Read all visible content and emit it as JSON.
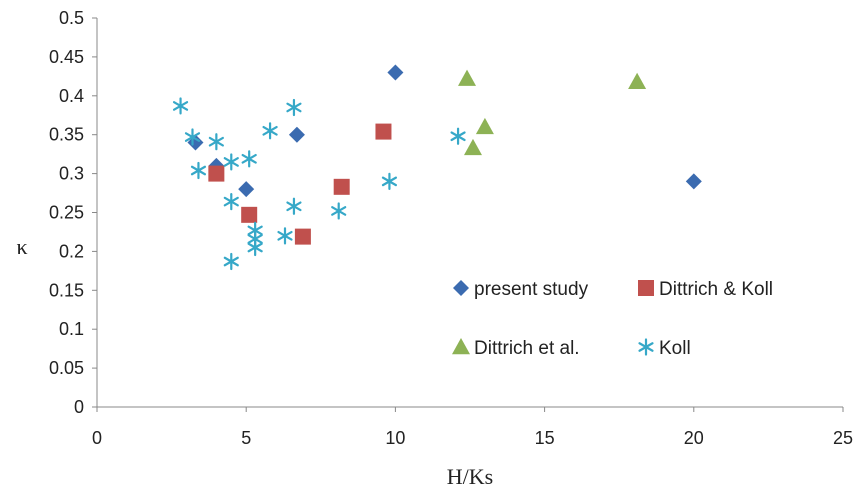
{
  "chart_data": {
    "type": "scatter",
    "xlabel": "H/Ks",
    "ylabel": "κ",
    "xlim": [
      0,
      25
    ],
    "ylim": [
      0,
      0.5
    ],
    "x_ticks": [
      "0",
      "5",
      "10",
      "15",
      "20",
      "25"
    ],
    "y_ticks": [
      "0",
      "0.05",
      "0.1",
      "0.15",
      "0.2",
      "0.25",
      "0.3",
      "0.35",
      "0.4",
      "0.45",
      "0.5"
    ],
    "grid": false,
    "legend_position": "bottom-right inside plot",
    "series": [
      {
        "name": "present study",
        "marker": "diamond",
        "color": "#3B6BB0",
        "points": [
          [
            3.3,
            0.34
          ],
          [
            4.0,
            0.31
          ],
          [
            5.0,
            0.28
          ],
          [
            6.7,
            0.35
          ],
          [
            10.0,
            0.43
          ],
          [
            20.0,
            0.29
          ]
        ]
      },
      {
        "name": "Dittrich & Koll",
        "marker": "square",
        "color": "#C0504D",
        "points": [
          [
            4.0,
            0.3
          ],
          [
            5.1,
            0.247
          ],
          [
            6.9,
            0.219
          ],
          [
            8.2,
            0.283
          ],
          [
            9.6,
            0.354
          ]
        ]
      },
      {
        "name": "Dittrich et al.",
        "marker": "triangle",
        "color": "#8DB255",
        "points": [
          [
            12.4,
            0.422
          ],
          [
            12.6,
            0.333
          ],
          [
            13.0,
            0.36
          ],
          [
            18.1,
            0.418
          ]
        ]
      },
      {
        "name": "Koll",
        "marker": "asterisk",
        "color": "#36A8C8",
        "points": [
          [
            2.8,
            0.387
          ],
          [
            3.2,
            0.347
          ],
          [
            3.4,
            0.304
          ],
          [
            4.0,
            0.341
          ],
          [
            4.5,
            0.315
          ],
          [
            4.5,
            0.264
          ],
          [
            4.5,
            0.187
          ],
          [
            5.1,
            0.319
          ],
          [
            5.3,
            0.227
          ],
          [
            5.3,
            0.216
          ],
          [
            5.3,
            0.205
          ],
          [
            5.8,
            0.355
          ],
          [
            6.3,
            0.22
          ],
          [
            6.6,
            0.385
          ],
          [
            6.6,
            0.258
          ],
          [
            8.1,
            0.252
          ],
          [
            9.8,
            0.29
          ],
          [
            12.1,
            0.348
          ]
        ]
      }
    ]
  }
}
